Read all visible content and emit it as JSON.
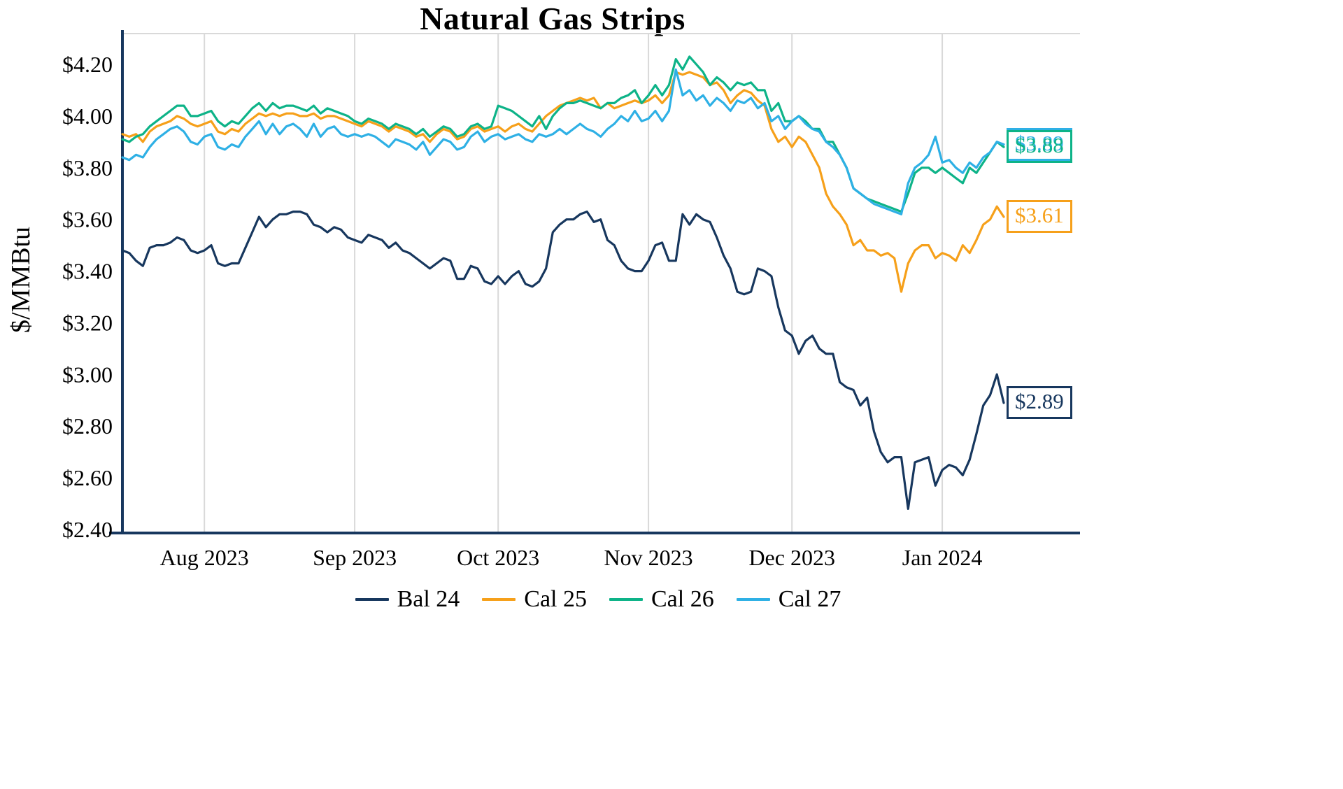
{
  "chart_data": {
    "type": "line",
    "title": "Natural Gas Strips",
    "xlabel": "",
    "ylabel": "$/MMBtu",
    "ylim": [
      2.386,
      4.32
    ],
    "grid": "vertical month gridlines, light gray",
    "legend_position": "bottom",
    "axis_color": "#17375E",
    "gridline_color": "#d9d9d9",
    "point_count": 130,
    "x_unit": "daily settlements, mid-Jul 2023 to mid-Jan 2024",
    "y_ticks": [
      {
        "value": 4.2,
        "label": "$4.20"
      },
      {
        "value": 4.0,
        "label": "$4.00"
      },
      {
        "value": 3.8,
        "label": "$3.80"
      },
      {
        "value": 3.6,
        "label": "$3.60"
      },
      {
        "value": 3.4,
        "label": "$3.40"
      },
      {
        "value": 3.2,
        "label": "$3.20"
      },
      {
        "value": 3.0,
        "label": "$3.00"
      },
      {
        "value": 2.8,
        "label": "$2.80"
      },
      {
        "value": 2.6,
        "label": "$2.60"
      },
      {
        "value": 2.4,
        "label": "$2.40"
      }
    ],
    "x_ticks": [
      {
        "label": "Aug 2023",
        "index": 12
      },
      {
        "label": "Sep 2023",
        "index": 34
      },
      {
        "label": "Oct 2023",
        "index": 55
      },
      {
        "label": "Nov 2023",
        "index": 77
      },
      {
        "label": "Dec 2023",
        "index": 98
      },
      {
        "label": "Jan 2024",
        "index": 120
      }
    ],
    "series": [
      {
        "name": "Bal 24",
        "color": "#17375E",
        "end_label": "$2.89",
        "label_z": 1,
        "values": [
          3.48,
          3.47,
          3.44,
          3.42,
          3.49,
          3.5,
          3.5,
          3.51,
          3.53,
          3.52,
          3.48,
          3.47,
          3.48,
          3.5,
          3.43,
          3.42,
          3.43,
          3.43,
          3.49,
          3.55,
          3.61,
          3.57,
          3.6,
          3.62,
          3.62,
          3.63,
          3.63,
          3.62,
          3.58,
          3.57,
          3.55,
          3.57,
          3.56,
          3.53,
          3.52,
          3.51,
          3.54,
          3.53,
          3.52,
          3.49,
          3.51,
          3.48,
          3.47,
          3.45,
          3.43,
          3.41,
          3.43,
          3.45,
          3.44,
          3.37,
          3.37,
          3.42,
          3.41,
          3.36,
          3.35,
          3.38,
          3.35,
          3.38,
          3.4,
          3.35,
          3.34,
          3.36,
          3.41,
          3.55,
          3.58,
          3.6,
          3.6,
          3.62,
          3.63,
          3.59,
          3.6,
          3.52,
          3.5,
          3.44,
          3.41,
          3.4,
          3.4,
          3.44,
          3.5,
          3.51,
          3.44,
          3.44,
          3.62,
          3.58,
          3.62,
          3.6,
          3.59,
          3.53,
          3.46,
          3.41,
          3.32,
          3.31,
          3.32,
          3.41,
          3.4,
          3.38,
          3.26,
          3.17,
          3.15,
          3.08,
          3.13,
          3.15,
          3.1,
          3.08,
          3.08,
          2.97,
          2.95,
          2.94,
          2.88,
          2.91,
          2.78,
          2.7,
          2.66,
          2.68,
          2.68,
          2.48,
          2.66,
          2.67,
          2.68,
          2.57,
          2.63,
          2.65,
          2.64,
          2.61,
          2.67,
          2.77,
          2.88,
          2.92,
          3.0,
          2.89
        ]
      },
      {
        "name": "Cal 25",
        "color": "#F6A01A",
        "end_label": "$3.61",
        "label_z": 1,
        "values": [
          3.93,
          3.92,
          3.93,
          3.9,
          3.94,
          3.96,
          3.97,
          3.98,
          4.0,
          3.99,
          3.97,
          3.96,
          3.97,
          3.98,
          3.94,
          3.93,
          3.95,
          3.94,
          3.97,
          3.99,
          4.01,
          4.0,
          4.01,
          4.0,
          4.01,
          4.01,
          4.0,
          4.0,
          4.01,
          3.99,
          4.0,
          4.0,
          3.99,
          3.98,
          3.97,
          3.96,
          3.98,
          3.97,
          3.96,
          3.94,
          3.96,
          3.95,
          3.94,
          3.92,
          3.93,
          3.9,
          3.93,
          3.95,
          3.94,
          3.91,
          3.92,
          3.95,
          3.96,
          3.94,
          3.95,
          3.96,
          3.94,
          3.96,
          3.97,
          3.95,
          3.94,
          3.97,
          4.0,
          4.02,
          4.04,
          4.05,
          4.06,
          4.07,
          4.06,
          4.07,
          4.03,
          4.05,
          4.03,
          4.04,
          4.05,
          4.06,
          4.05,
          4.06,
          4.08,
          4.05,
          4.08,
          4.17,
          4.16,
          4.17,
          4.16,
          4.15,
          4.12,
          4.13,
          4.1,
          4.05,
          4.08,
          4.1,
          4.09,
          4.06,
          4.04,
          3.95,
          3.9,
          3.92,
          3.88,
          3.92,
          3.9,
          3.85,
          3.8,
          3.7,
          3.65,
          3.62,
          3.58,
          3.5,
          3.52,
          3.48,
          3.48,
          3.46,
          3.47,
          3.45,
          3.32,
          3.43,
          3.48,
          3.5,
          3.5,
          3.45,
          3.47,
          3.46,
          3.44,
          3.5,
          3.47,
          3.52,
          3.58,
          3.6,
          3.65,
          3.61
        ]
      },
      {
        "name": "Cal 26",
        "color": "#0DB388",
        "end_label": "$3.88",
        "label_z": 3,
        "values": [
          3.91,
          3.9,
          3.92,
          3.93,
          3.96,
          3.98,
          4.0,
          4.02,
          4.04,
          4.04,
          4.0,
          4.0,
          4.01,
          4.02,
          3.98,
          3.96,
          3.98,
          3.97,
          4.0,
          4.03,
          4.05,
          4.02,
          4.05,
          4.03,
          4.04,
          4.04,
          4.03,
          4.02,
          4.04,
          4.01,
          4.03,
          4.02,
          4.01,
          4.0,
          3.98,
          3.97,
          3.99,
          3.98,
          3.97,
          3.95,
          3.97,
          3.96,
          3.95,
          3.93,
          3.95,
          3.92,
          3.94,
          3.96,
          3.95,
          3.92,
          3.93,
          3.96,
          3.97,
          3.95,
          3.96,
          4.04,
          4.03,
          4.02,
          4.0,
          3.98,
          3.96,
          4.0,
          3.95,
          4.0,
          4.03,
          4.05,
          4.05,
          4.06,
          4.05,
          4.04,
          4.03,
          4.05,
          4.05,
          4.07,
          4.08,
          4.1,
          4.05,
          4.08,
          4.12,
          4.08,
          4.12,
          4.22,
          4.18,
          4.23,
          4.2,
          4.17,
          4.12,
          4.15,
          4.13,
          4.1,
          4.13,
          4.12,
          4.13,
          4.1,
          4.1,
          4.02,
          4.05,
          3.98,
          3.98,
          4.0,
          3.98,
          3.95,
          3.95,
          3.9,
          3.9,
          3.85,
          3.8,
          3.72,
          3.7,
          3.68,
          3.67,
          3.66,
          3.65,
          3.64,
          3.63,
          3.7,
          3.78,
          3.8,
          3.8,
          3.78,
          3.8,
          3.78,
          3.76,
          3.74,
          3.8,
          3.78,
          3.82,
          3.86,
          3.9,
          3.88
        ]
      },
      {
        "name": "Cal 27",
        "color": "#2EB0E5",
        "end_label": "$3.89",
        "label_z": 2,
        "values": [
          3.84,
          3.83,
          3.85,
          3.84,
          3.88,
          3.91,
          3.93,
          3.95,
          3.96,
          3.94,
          3.9,
          3.89,
          3.92,
          3.93,
          3.88,
          3.87,
          3.89,
          3.88,
          3.92,
          3.95,
          3.98,
          3.93,
          3.97,
          3.93,
          3.96,
          3.97,
          3.95,
          3.92,
          3.97,
          3.92,
          3.95,
          3.96,
          3.93,
          3.92,
          3.93,
          3.92,
          3.93,
          3.92,
          3.9,
          3.88,
          3.91,
          3.9,
          3.89,
          3.87,
          3.9,
          3.85,
          3.88,
          3.91,
          3.9,
          3.87,
          3.88,
          3.92,
          3.94,
          3.9,
          3.92,
          3.93,
          3.91,
          3.92,
          3.93,
          3.91,
          3.9,
          3.93,
          3.92,
          3.93,
          3.95,
          3.93,
          3.95,
          3.97,
          3.95,
          3.94,
          3.92,
          3.95,
          3.97,
          4.0,
          3.98,
          4.02,
          3.98,
          3.99,
          4.02,
          3.98,
          4.02,
          4.18,
          4.08,
          4.1,
          4.06,
          4.08,
          4.04,
          4.07,
          4.05,
          4.02,
          4.06,
          4.05,
          4.07,
          4.03,
          4.05,
          3.98,
          4.0,
          3.95,
          3.98,
          4.0,
          3.97,
          3.95,
          3.94,
          3.9,
          3.88,
          3.85,
          3.8,
          3.72,
          3.7,
          3.68,
          3.66,
          3.65,
          3.64,
          3.63,
          3.62,
          3.74,
          3.8,
          3.82,
          3.85,
          3.92,
          3.82,
          3.83,
          3.8,
          3.78,
          3.82,
          3.8,
          3.84,
          3.86,
          3.9,
          3.89
        ]
      }
    ]
  }
}
